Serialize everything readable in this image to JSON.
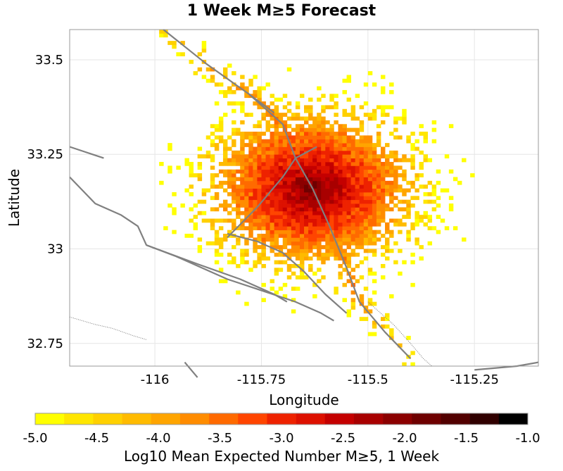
{
  "chart_data": {
    "type": "heatmap",
    "title": "1 Week M≥5 Forecast",
    "xlabel": "Longitude",
    "ylabel": "Latitude",
    "xlim": [
      -116.2,
      -115.1
    ],
    "ylim": [
      32.69,
      33.58
    ],
    "x_ticks": [
      -116,
      -115.75,
      -115.5,
      -115.25
    ],
    "x_tick_labels": [
      "-116",
      "-115.75",
      "-115.5",
      "-115.25"
    ],
    "y_ticks": [
      32.75,
      33,
      33.25,
      33.5
    ],
    "y_tick_labels": [
      "32.75",
      "33",
      "33.25",
      "33.5"
    ],
    "cell_size_deg": 0.01,
    "hotspot_center": [
      -115.63,
      33.16
    ],
    "colorbar": {
      "label": "Log10 Mean Expected Number M≥5, 1 Week",
      "min": -5.0,
      "max": -1.0,
      "tick_values": [
        -5.0,
        -4.5,
        -4.0,
        -3.5,
        -3.0,
        -2.5,
        -2.0,
        -1.5,
        -1.0
      ],
      "tick_labels": [
        "-5.0",
        "-4.5",
        "-4.0",
        "-3.5",
        "-3.0",
        "-2.5",
        "-2.0",
        "-1.5",
        "-1.0"
      ],
      "colors": [
        "#ffff00",
        "#ffe600",
        "#ffd000",
        "#ffbb00",
        "#ffa500",
        "#ff8c00",
        "#ff6a00",
        "#ff4500",
        "#ee2200",
        "#dd1100",
        "#c40000",
        "#a80000",
        "#8b0000",
        "#6e0000",
        "#520000",
        "#300000",
        "#000000"
      ]
    },
    "faults": [
      [
        [
          -115.98,
          33.58
        ],
        [
          -115.88,
          33.49
        ],
        [
          -115.78,
          33.41
        ],
        [
          -115.7,
          33.33
        ],
        [
          -115.67,
          33.24
        ],
        [
          -115.63,
          33.16
        ],
        [
          -115.59,
          33.06
        ],
        [
          -115.55,
          32.95
        ],
        [
          -115.52,
          32.86
        ],
        [
          -115.46,
          32.78
        ],
        [
          -115.4,
          32.71
        ]
      ],
      [
        [
          -115.78,
          33.41
        ],
        [
          -115.72,
          33.36
        ]
      ],
      [
        [
          -115.67,
          33.24
        ],
        [
          -115.7,
          33.19
        ],
        [
          -115.76,
          33.11
        ],
        [
          -115.83,
          33.03
        ]
      ],
      [
        [
          -115.67,
          33.24
        ],
        [
          -115.62,
          33.27
        ]
      ],
      [
        [
          -116.2,
          33.27
        ],
        [
          -116.12,
          33.24
        ]
      ],
      [
        [
          -116.2,
          33.19
        ],
        [
          -116.14,
          33.12
        ],
        [
          -116.08,
          33.09
        ],
        [
          -116.04,
          33.06
        ],
        [
          -116.02,
          33.01
        ],
        [
          -115.95,
          32.98
        ],
        [
          -115.83,
          32.92
        ],
        [
          -115.75,
          32.89
        ],
        [
          -115.67,
          32.86
        ],
        [
          -115.61,
          32.83
        ],
        [
          -115.58,
          32.81
        ]
      ],
      [
        [
          -116.02,
          33.01
        ],
        [
          -115.9,
          32.96
        ],
        [
          -115.8,
          32.92
        ],
        [
          -115.72,
          32.88
        ],
        [
          -115.69,
          32.86
        ]
      ],
      [
        [
          -115.83,
          33.04
        ],
        [
          -115.76,
          33.02
        ],
        [
          -115.7,
          32.99
        ],
        [
          -115.65,
          32.94
        ],
        [
          -115.6,
          32.88
        ],
        [
          -115.55,
          32.83
        ]
      ],
      [
        [
          -115.93,
          32.7
        ],
        [
          -115.9,
          32.66
        ]
      ],
      [
        [
          -115.25,
          32.68
        ],
        [
          -115.15,
          32.69
        ],
        [
          -115.1,
          32.7
        ]
      ]
    ],
    "boundary_dotted": [
      [
        [
          -116.2,
          32.82
        ],
        [
          -116.14,
          32.8
        ],
        [
          -116.1,
          32.79
        ],
        [
          -116.05,
          32.77
        ],
        [
          -116.02,
          32.76
        ]
      ],
      [
        [
          -115.5,
          32.86
        ],
        [
          -115.44,
          32.8
        ],
        [
          -115.4,
          32.75
        ],
        [
          -115.37,
          32.71
        ],
        [
          -115.35,
          32.69
        ]
      ]
    ]
  }
}
